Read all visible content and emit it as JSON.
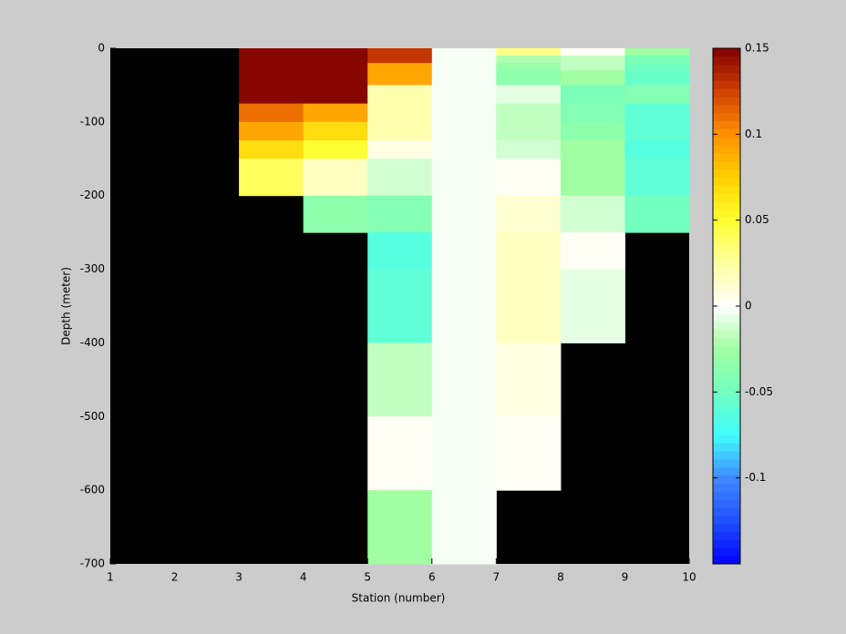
{
  "chart_data": {
    "type": "heatmap",
    "xlabel": "Station (number)",
    "ylabel": "Depth (meter)",
    "x_edges": [
      1,
      2,
      3,
      4,
      5,
      6,
      7,
      8,
      9,
      10
    ],
    "y_edges": [
      0,
      -10,
      -20,
      -30,
      -50,
      -75,
      -100,
      -125,
      -150,
      -200,
      -250,
      -300,
      -400,
      -500,
      -600,
      -700
    ],
    "xlim": [
      1,
      10
    ],
    "xticks": [
      1,
      2,
      3,
      4,
      5,
      6,
      7,
      8,
      9,
      10
    ],
    "ylim": [
      -700,
      0
    ],
    "yticks": [
      0,
      -100,
      -200,
      -300,
      -400,
      -500,
      -600,
      -700
    ],
    "values": [
      [
        null,
        null,
        0.15,
        0.15,
        0.13,
        -0.003,
        0.03,
        0,
        -0.025
      ],
      [
        null,
        null,
        0.15,
        0.15,
        0.13,
        -0.003,
        -0.02,
        -0.015,
        -0.045
      ],
      [
        null,
        null,
        0.15,
        0.15,
        0.09,
        -0.003,
        -0.03,
        -0.015,
        -0.05
      ],
      [
        null,
        null,
        0.15,
        0.15,
        0.09,
        -0.003,
        -0.035,
        -0.025,
        -0.055
      ],
      [
        null,
        null,
        0.15,
        0.15,
        0.02,
        -0.003,
        -0.008,
        -0.045,
        -0.04
      ],
      [
        null,
        null,
        0.11,
        0.09,
        0.02,
        -0.003,
        -0.015,
        -0.04,
        -0.06
      ],
      [
        null,
        null,
        0.09,
        0.07,
        0.02,
        -0.003,
        -0.015,
        -0.035,
        -0.06
      ],
      [
        null,
        null,
        0.07,
        0.05,
        0.005,
        -0.003,
        -0.01,
        -0.025,
        -0.065
      ],
      [
        null,
        null,
        0.04,
        0.015,
        -0.01,
        -0.003,
        0.002,
        -0.025,
        -0.06
      ],
      [
        null,
        null,
        null,
        -0.035,
        -0.04,
        -0.003,
        0.01,
        -0.01,
        -0.05
      ],
      [
        null,
        null,
        null,
        null,
        -0.065,
        -0.003,
        0.015,
        0.003,
        null
      ],
      [
        null,
        null,
        null,
        null,
        -0.06,
        -0.003,
        0.015,
        -0.008,
        null
      ],
      [
        null,
        null,
        null,
        null,
        -0.015,
        -0.003,
        0.008,
        null,
        null
      ],
      [
        null,
        null,
        null,
        null,
        0,
        -0.003,
        0.003,
        null,
        null
      ],
      [
        null,
        null,
        null,
        null,
        -0.025,
        -0.003,
        null,
        null,
        null
      ]
    ],
    "clim": [
      -0.15,
      0.15
    ],
    "cticks": [
      0.15,
      0.1,
      0.05,
      0,
      -0.05,
      -0.1
    ],
    "colormap": [
      "#0000ff",
      "#2050ff",
      "#4088ff",
      "#40ffff",
      "#70ffc0",
      "#a0ffa0",
      "#ffffff",
      "#ffffa0",
      "#ffff30",
      "#ffd000",
      "#ff9000",
      "#d04000",
      "#800000"
    ],
    "colormap_levels": 64,
    "background": "#000000"
  }
}
